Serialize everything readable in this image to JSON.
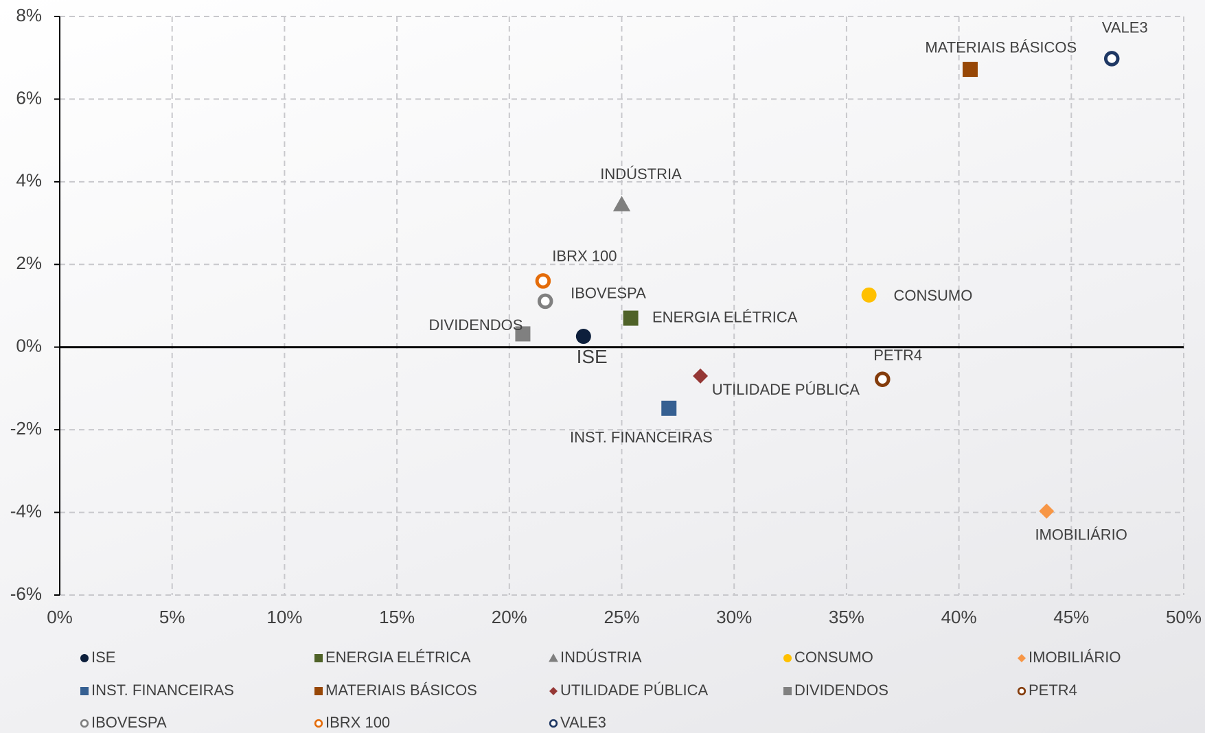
{
  "chart_data": {
    "type": "scatter",
    "xlim": [
      0,
      50
    ],
    "xticks": [
      {
        "value": 0,
        "label": "0%"
      },
      {
        "value": 5,
        "label": "5%"
      },
      {
        "value": 10,
        "label": "10%"
      },
      {
        "value": 15,
        "label": "15%"
      },
      {
        "value": 20,
        "label": "20%"
      },
      {
        "value": 25,
        "label": "25%"
      },
      {
        "value": 30,
        "label": "30%"
      },
      {
        "value": 35,
        "label": "35%"
      },
      {
        "value": 40,
        "label": "40%"
      },
      {
        "value": 45,
        "label": "45%"
      },
      {
        "value": 50,
        "label": "50%"
      }
    ],
    "ylim": [
      -6,
      8
    ],
    "yticks": [
      {
        "value": -6,
        "label": "-6%"
      },
      {
        "value": -4,
        "label": "-4%"
      },
      {
        "value": -2,
        "label": "-2%"
      },
      {
        "value": 0,
        "label": "0%"
      },
      {
        "value": 2,
        "label": "2%"
      },
      {
        "value": 4,
        "label": "4%"
      },
      {
        "value": 6,
        "label": "6%"
      },
      {
        "value": 8,
        "label": "8%"
      }
    ],
    "grid": true,
    "legend": "bottom",
    "series": [
      {
        "name": "ISE",
        "color": "#0d1f3c",
        "marker": "circle",
        "x": [
          23.3
        ],
        "values": [
          0.26
        ]
      },
      {
        "name": "ENERGIA ELÉTRICA",
        "color": "#4f6228",
        "marker": "square",
        "x": [
          25.4
        ],
        "values": [
          0.7
        ]
      },
      {
        "name": "INDÚSTRIA",
        "color": "#7f7f7f",
        "marker": "triangle",
        "x": [
          25.0
        ],
        "values": [
          3.45
        ]
      },
      {
        "name": "CONSUMO",
        "color": "#ffc000",
        "marker": "circle",
        "x": [
          36.0
        ],
        "values": [
          1.26
        ]
      },
      {
        "name": "IMOBILIÁRIO",
        "color": "#f79646",
        "marker": "diamond",
        "x": [
          43.9
        ],
        "values": [
          -3.97
        ]
      },
      {
        "name": "INST. FINANCEIRAS",
        "color": "#366092",
        "marker": "square",
        "x": [
          27.1
        ],
        "values": [
          -1.48
        ]
      },
      {
        "name": "MATERIAIS BÁSICOS",
        "color": "#974706",
        "marker": "square",
        "x": [
          40.5
        ],
        "values": [
          6.72
        ]
      },
      {
        "name": "UTILIDADE PÚBLICA",
        "color": "#953735",
        "marker": "diamond",
        "x": [
          28.5
        ],
        "values": [
          -0.7
        ]
      },
      {
        "name": "DIVIDENDOS",
        "color": "#808080",
        "marker": "square",
        "x": [
          20.6
        ],
        "values": [
          0.32
        ]
      },
      {
        "name": "PETR4",
        "color": "#843c0c",
        "marker": "ring",
        "x": [
          36.6
        ],
        "values": [
          -0.78
        ]
      },
      {
        "name": "IBOVESPA",
        "color": "#808080",
        "marker": "ring",
        "x": [
          21.6
        ],
        "values": [
          1.11
        ]
      },
      {
        "name": "IBRX 100",
        "color": "#e46c0a",
        "marker": "ring",
        "x": [
          21.5
        ],
        "values": [
          1.6
        ]
      },
      {
        "name": "VALE3",
        "color": "#1f3864",
        "marker": "ring",
        "x": [
          46.8
        ],
        "values": [
          6.98
        ]
      }
    ]
  }
}
